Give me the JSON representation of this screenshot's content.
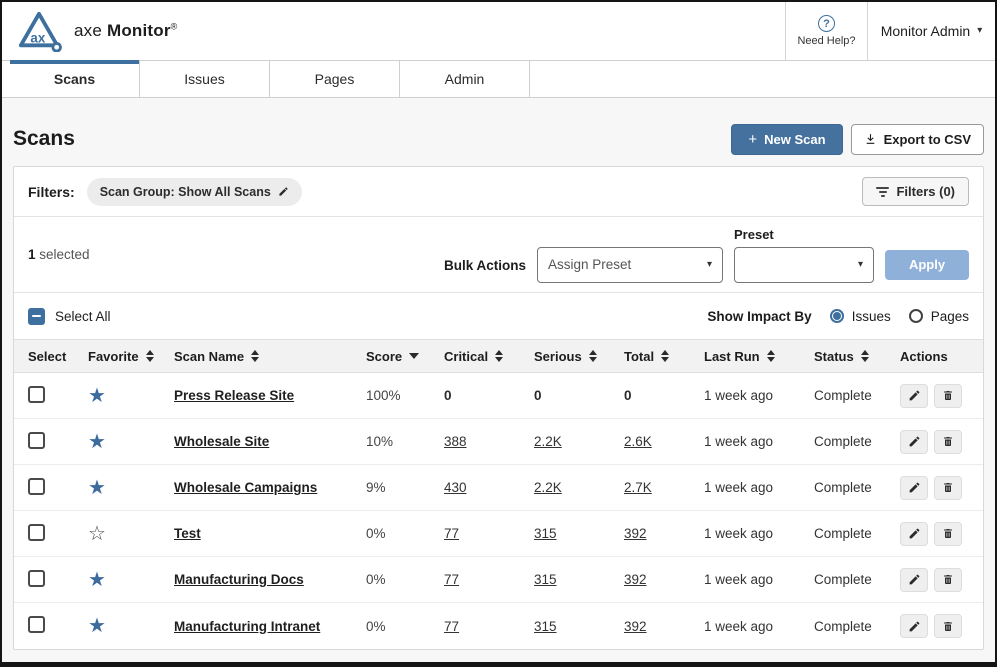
{
  "header": {
    "brand_axe": "axe",
    "brand_monitor": "Monitor",
    "registered": "®",
    "need_help": "Need Help?",
    "user_menu": "Monitor Admin"
  },
  "tabs": [
    {
      "label": "Scans",
      "active": true
    },
    {
      "label": "Issues",
      "active": false
    },
    {
      "label": "Pages",
      "active": false
    },
    {
      "label": "Admin",
      "active": false
    }
  ],
  "page": {
    "title": "Scans",
    "new_scan": "New Scan",
    "new_scan_plus": "+",
    "export_csv": "Export to CSV"
  },
  "filters": {
    "label": "Filters:",
    "chip": "Scan Group: Show All Scans",
    "filters_button": "Filters (0)"
  },
  "bulk": {
    "selected_count": "1",
    "selected_text": "selected",
    "bulk_actions_label": "Bulk Actions",
    "action_value": "Assign Preset",
    "preset_label": "Preset",
    "preset_value": "",
    "apply_label": "Apply"
  },
  "list_controls": {
    "select_all": "Select All",
    "select_all_state": "indeterminate",
    "show_impact_by": "Show Impact By",
    "impact_options": [
      {
        "label": "Issues",
        "selected": true
      },
      {
        "label": "Pages",
        "selected": false
      }
    ]
  },
  "table": {
    "columns": [
      {
        "label": "Select",
        "sort": "none"
      },
      {
        "label": "Favorite",
        "sort": "both"
      },
      {
        "label": "Scan Name",
        "sort": "both"
      },
      {
        "label": "Score",
        "sort": "desc"
      },
      {
        "label": "Critical",
        "sort": "both"
      },
      {
        "label": "Serious",
        "sort": "both"
      },
      {
        "label": "Total",
        "sort": "both"
      },
      {
        "label": "Last Run",
        "sort": "both"
      },
      {
        "label": "Status",
        "sort": "both"
      },
      {
        "label": "Actions",
        "sort": "none"
      }
    ],
    "rows": [
      {
        "favorite": true,
        "name": "Press Release Site",
        "score": "100%",
        "critical": "0",
        "serious": "0",
        "total": "0",
        "links": false,
        "last_run": "1 week ago",
        "status": "Complete"
      },
      {
        "favorite": true,
        "name": "Wholesale Site",
        "score": "10%",
        "critical": "388",
        "serious": "2.2K",
        "total": "2.6K",
        "links": true,
        "last_run": "1 week ago",
        "status": "Complete"
      },
      {
        "favorite": true,
        "name": "Wholesale Campaigns",
        "score": "9%",
        "critical": "430",
        "serious": "2.2K",
        "total": "2.7K",
        "links": true,
        "last_run": "1 week ago",
        "status": "Complete"
      },
      {
        "favorite": false,
        "name": "Test",
        "score": "0%",
        "critical": "77",
        "serious": "315",
        "total": "392",
        "links": true,
        "last_run": "1 week ago",
        "status": "Complete"
      },
      {
        "favorite": true,
        "name": "Manufacturing Docs",
        "score": "0%",
        "critical": "77",
        "serious": "315",
        "total": "392",
        "links": true,
        "last_run": "1 week ago",
        "status": "Complete"
      },
      {
        "favorite": true,
        "name": "Manufacturing Intranet",
        "score": "0%",
        "critical": "77",
        "serious": "315",
        "total": "392",
        "links": true,
        "last_run": "1 week ago",
        "status": "Complete"
      }
    ]
  },
  "icons": {
    "favorite_on_glyph": "★",
    "favorite_off_glyph": "☆",
    "caret_glyph": "▾",
    "help_icon": "question-circle",
    "edit_icon": "pencil",
    "delete_icon": "trash",
    "export_icon": "download",
    "filter_icon": "funnel-lines"
  },
  "colors": {
    "accent": "#3d6f9f",
    "apply_disabled": "#8fb1d9",
    "page_bg": "#f7f7f7"
  }
}
